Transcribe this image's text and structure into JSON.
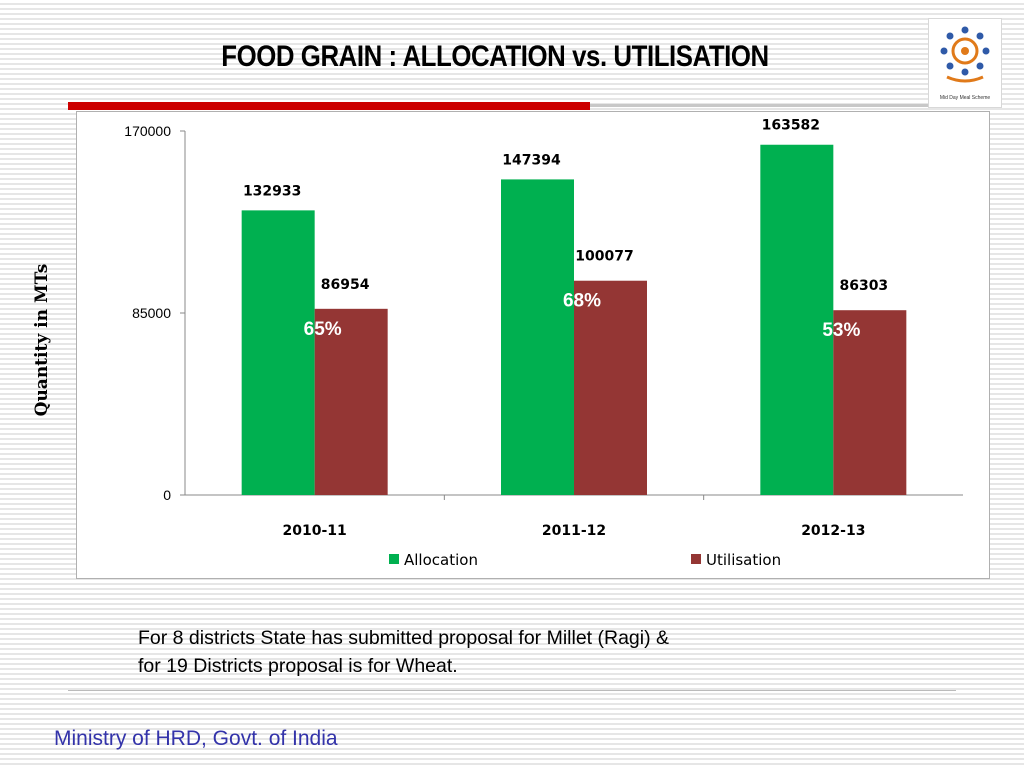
{
  "slide": {
    "title": "FOOD GRAIN : ALLOCATION vs. UTILISATION",
    "note_line1": "For 8 districts State has submitted proposal for Millet (Ragi) &",
    "note_line2": "for 19 Districts proposal is for Wheat.",
    "footer": "Ministry of HRD, Govt. of India",
    "logo_text": "Mid Day Meal Scheme"
  },
  "colors": {
    "allocation": "#00b050",
    "utilisation": "#943634",
    "accent_red": "#cc0000",
    "footer_text": "#3333aa"
  },
  "chart_data": {
    "type": "bar",
    "title": "",
    "xlabel": "",
    "ylabel": "Quantity in MTs",
    "categories": [
      "2010-11",
      "2011-12",
      "2012-13"
    ],
    "series": [
      {
        "name": "Allocation",
        "values": [
          132933,
          147394,
          163582
        ]
      },
      {
        "name": "Utilisation",
        "values": [
          86954,
          100077,
          86303
        ]
      }
    ],
    "percent_labels": [
      "65%",
      "68%",
      "53%"
    ],
    "ylim": [
      0,
      170000
    ],
    "yticks": [
      0,
      85000,
      170000
    ],
    "legend": "bottom",
    "grid": false
  }
}
